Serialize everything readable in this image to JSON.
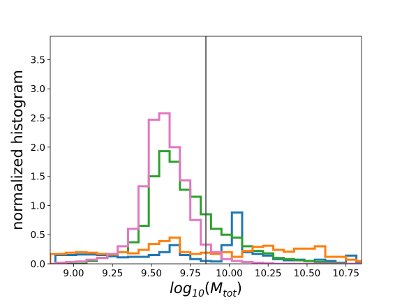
{
  "chart_data": {
    "type": "step-histogram",
    "xlabel_base": "log",
    "xlabel_sub": "10",
    "xlabel_paren_open": "(",
    "xlabel_var": "M",
    "xlabel_var_sub": "tot",
    "xlabel_paren_close": ")",
    "ylabel": "normalized histogram",
    "xlim": [
      8.85,
      10.85
    ],
    "ylim": [
      0,
      3.9
    ],
    "xticks": [
      9.0,
      9.25,
      9.5,
      9.75,
      10.0,
      10.25,
      10.5,
      10.75
    ],
    "xtick_labels": [
      "9.00",
      "9.25",
      "9.50",
      "9.75",
      "10.00",
      "10.25",
      "10.50",
      "10.75"
    ],
    "yticks": [
      0.0,
      0.5,
      1.0,
      1.5,
      2.0,
      2.5,
      3.0,
      3.5
    ],
    "ytick_labels": [
      "0.0",
      "0.5",
      "1.0",
      "1.5",
      "2.0",
      "2.5",
      "3.0",
      "3.5"
    ],
    "vline_x": 9.85,
    "vline_color": "#444444",
    "bin_edges": [
      8.85,
      8.883,
      8.95,
      9.017,
      9.083,
      9.15,
      9.217,
      9.283,
      9.35,
      9.417,
      9.483,
      9.55,
      9.617,
      9.683,
      9.75,
      9.817,
      9.883,
      9.95,
      10.017,
      10.083,
      10.15,
      10.217,
      10.283,
      10.35,
      10.417,
      10.483,
      10.55,
      10.617,
      10.683,
      10.75,
      10.817,
      10.85
    ],
    "grid": false,
    "series": [
      {
        "color": "#1f77b4",
        "values": [
          0.0,
          0.15,
          0.15,
          0.16,
          0.16,
          0.15,
          0.13,
          0.11,
          0.12,
          0.12,
          0.15,
          0.2,
          0.32,
          0.15,
          0.08,
          0.05,
          0.04,
          0.32,
          0.88,
          0.2,
          0.17,
          0.14,
          0.08,
          0.06,
          0.07,
          0.05,
          0.07,
          0.05,
          0.02,
          0.14,
          0.03
        ]
      },
      {
        "color": "#2ca02c",
        "values": [
          0.0,
          0.0,
          0.0,
          0.0,
          0.05,
          0.1,
          0.15,
          0.2,
          0.37,
          0.65,
          1.5,
          1.93,
          1.75,
          1.27,
          1.15,
          0.85,
          0.6,
          0.5,
          0.45,
          0.3,
          0.22,
          0.18,
          0.1,
          0.08,
          0.06,
          0.05,
          0.03,
          0.02,
          0.01,
          0.0,
          0.0
        ]
      },
      {
        "color": "#ff7f0e",
        "values": [
          0.17,
          0.17,
          0.19,
          0.2,
          0.19,
          0.17,
          0.16,
          0.2,
          0.18,
          0.24,
          0.34,
          0.39,
          0.45,
          0.2,
          0.17,
          0.19,
          0.17,
          0.2,
          0.12,
          0.22,
          0.29,
          0.31,
          0.24,
          0.21,
          0.26,
          0.26,
          0.3,
          0.12,
          0.12,
          0.07,
          0.05
        ]
      },
      {
        "color": "#e377c2",
        "values": [
          0.0,
          0.02,
          0.03,
          0.04,
          0.07,
          0.1,
          0.17,
          0.3,
          0.6,
          1.33,
          2.47,
          2.58,
          2.0,
          1.43,
          0.75,
          0.33,
          0.2,
          0.08,
          0.05,
          0.03,
          0.02,
          0.01,
          0.0,
          0.0,
          0.0,
          0.0,
          0.0,
          0.0,
          0.0,
          0.0,
          0.0
        ]
      }
    ]
  }
}
